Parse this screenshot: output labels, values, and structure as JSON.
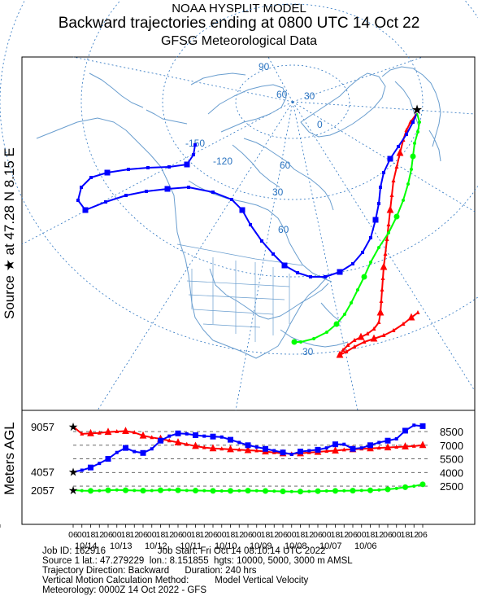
{
  "header": {
    "title1": "NOAA HYSPLIT MODEL",
    "title2": "Backward trajectories ending at 0800 UTC 14 Oct 22",
    "title3": "GFSG Meteorological Data"
  },
  "side_labels": {
    "source": "Source ★ at   47.28 N   8.15 E",
    "agl": "Meters AGL"
  },
  "map": {
    "grid_labels": [
      "-150",
      "-120",
      "90",
      "60",
      "30",
      "0",
      "60",
      "30",
      "60",
      "30"
    ],
    "colors": {
      "red": "#ff0000",
      "blue": "#0000ff",
      "green": "#00ff00",
      "land": "#6a9ecf",
      "grid": "#2a73c0"
    }
  },
  "chart_data": {
    "type": "line",
    "title": "",
    "ylabel": "Meters AGL",
    "y_ticks_right": [
      "8500",
      "7000",
      "5500",
      "4000",
      "2500"
    ],
    "y_ticks_left": [
      "9057",
      "4057",
      "2057"
    ],
    "x_hour_labels": [
      "06",
      "00",
      "18",
      "12",
      "06",
      "00",
      "18",
      "12",
      "06",
      "00",
      "18",
      "12",
      "06",
      "00",
      "18",
      "12",
      "06",
      "00",
      "18",
      "12",
      "06",
      "00",
      "18",
      "12",
      "06",
      "00",
      "18",
      "12",
      "06",
      "00",
      "18",
      "12",
      "06",
      "00",
      "18",
      "12",
      "06",
      "00",
      "18",
      "12",
      "06",
      "00"
    ],
    "x_date_labels": [
      "10/14",
      "10/13",
      "10/12",
      "10/11",
      "10/10",
      "10/09",
      "10/08",
      "10/07",
      "10/06"
    ],
    "hours_back": [
      0,
      6,
      12,
      18,
      24,
      30,
      36,
      42,
      48,
      54,
      60,
      66,
      72,
      78,
      84,
      90,
      96,
      102,
      108,
      114,
      120,
      126,
      132,
      138,
      144,
      150,
      156,
      162,
      168,
      174,
      180,
      186,
      192,
      198,
      204,
      210,
      216,
      222,
      228,
      234,
      240
    ],
    "series": [
      {
        "color": "red",
        "start_height": 9057,
        "values": [
          9057,
          8250,
          8300,
          8350,
          8450,
          8500,
          8550,
          8400,
          8050,
          7850,
          7700,
          7500,
          7300,
          7100,
          6900,
          6750,
          6650,
          6600,
          6550,
          6500,
          6450,
          6400,
          6300,
          6200,
          6100,
          6050,
          6100,
          6200,
          6250,
          6350,
          6400,
          6500,
          6550,
          6600,
          6650,
          6700,
          6750,
          6800,
          6850,
          6900,
          7000
        ]
      },
      {
        "color": "blue",
        "start_height": 4057,
        "values": [
          4057,
          4250,
          4550,
          5000,
          5500,
          6200,
          6700,
          6300,
          6150,
          6600,
          7500,
          8000,
          8300,
          8250,
          8100,
          8000,
          7950,
          7900,
          7600,
          7300,
          7000,
          6800,
          6600,
          6400,
          6200,
          6000,
          6300,
          6400,
          6500,
          6700,
          7100,
          7100,
          6600,
          6700,
          7000,
          7300,
          7500,
          7700,
          8600,
          9200,
          9100
        ]
      },
      {
        "color": "green",
        "start_height": 2057,
        "values": [
          2057,
          2000,
          1980,
          2000,
          2050,
          2080,
          2050,
          2030,
          2000,
          2010,
          2050,
          2100,
          2050,
          2020,
          2010,
          2000,
          1980,
          1970,
          1980,
          1990,
          2000,
          1990,
          1970,
          1950,
          1920,
          1900,
          1900,
          1920,
          1950,
          1970,
          1980,
          1990,
          2000,
          2020,
          2040,
          2080,
          2150,
          2250,
          2380,
          2500,
          2700
        ]
      }
    ]
  },
  "info": {
    "line1": "Job ID: 162916                    Job Start: Fri Oct 14 08:10:14 UTC 2022",
    "line2": "Source 1 lat.: 47.279229  lon.: 8.151855  hgts: 10000, 5000, 3000 m AMSL",
    "line3": "",
    "line4": "Trajectory Direction: Backward      Duration: 240 hrs",
    "line5": "Vertical Motion Calculation Method:          Model Vertical Velocity",
    "line6": "Meteorology: 0000Z 14 Oct 2022 - GFS"
  }
}
